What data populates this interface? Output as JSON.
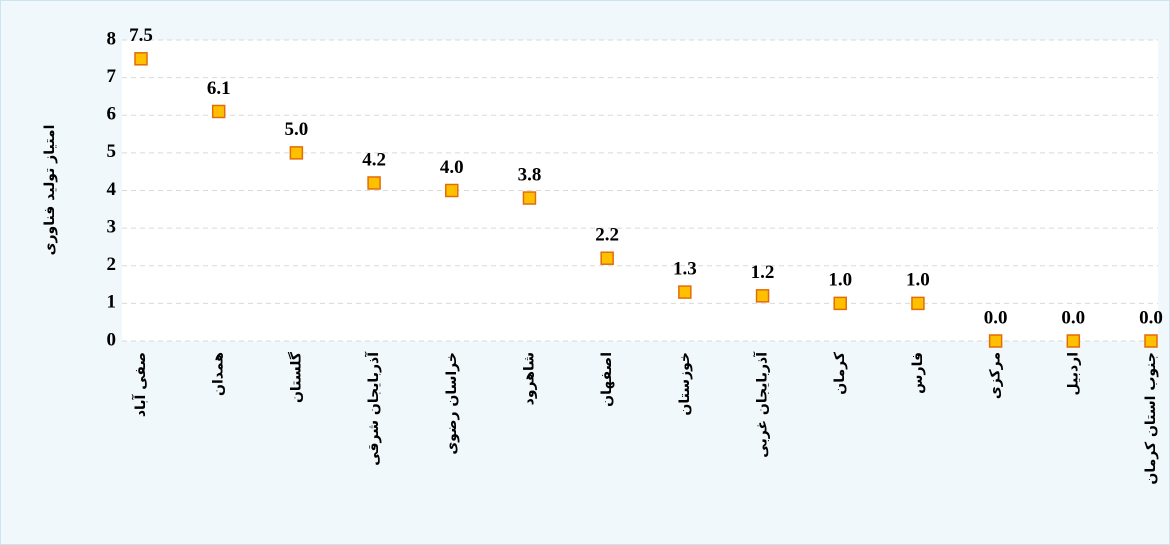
{
  "chart_data": {
    "type": "scatter",
    "y_label": "امتیاز تولید فناوری",
    "categories": [
      "صفی آباد",
      "همدان",
      "گلستان",
      "آذربایجان شرقی",
      "خراسان رضوی",
      "شاهرود",
      "اصفهان",
      "خوزستان",
      "آذربایجان غربی",
      "کرمان",
      "فارس",
      "مرکزی",
      "اردبیل",
      "جنوب استان کرمان"
    ],
    "values": [
      7.5,
      6.1,
      5,
      4.2,
      4,
      3.8,
      2.2,
      1.3,
      1.2,
      1,
      1,
      0,
      0,
      0
    ],
    "value_labels": [
      "7.5",
      "6.1",
      "5.0",
      "4.2",
      "4.0",
      "3.8",
      "2.2",
      "1.3",
      "1.2",
      "1.0",
      "1.0",
      "0.0",
      "0.0",
      "0.0"
    ],
    "color": "#ffc000",
    "edge_color": "#e36c09",
    "ylim": [
      0,
      8
    ],
    "yticks": [
      0,
      1,
      2,
      3,
      4,
      5,
      6,
      7,
      8
    ],
    "grid": true
  }
}
